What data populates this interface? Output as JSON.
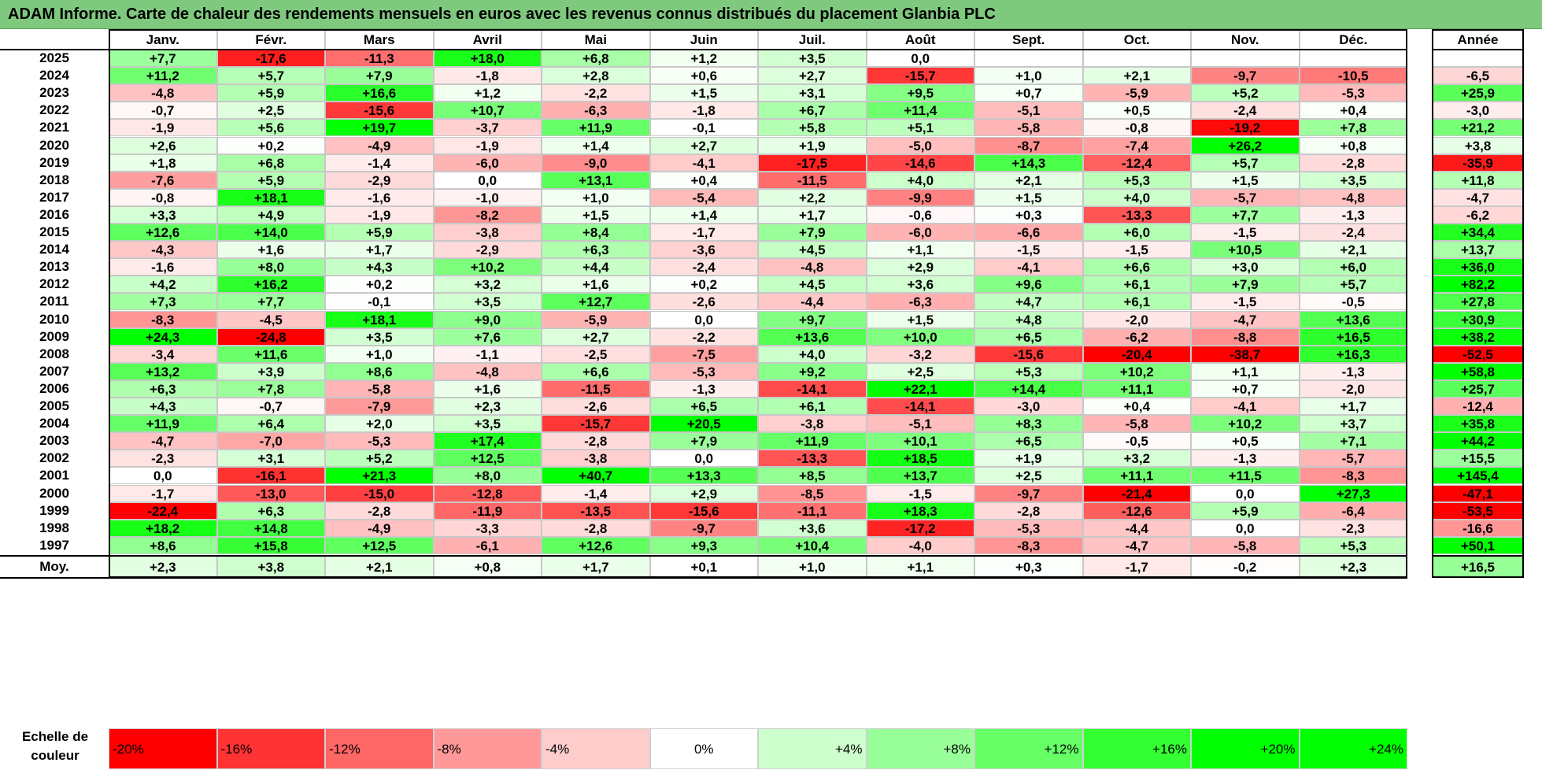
{
  "title": "ADAM Informe. Carte de chaleur des rendements mensuels en euros avec les revenus connus distribués du placement Glanbia PLC",
  "chart_data": {
    "type": "heatmap",
    "title": "ADAM Informe. Carte de chaleur des rendements mensuels en euros avec les revenus connus distribués du placement Glanbia PLC",
    "months": [
      "Janv.",
      "Févr.",
      "Mars",
      "Avril",
      "Mai",
      "Juin",
      "Juil.",
      "Août",
      "Sept.",
      "Oct.",
      "Nov.",
      "Déc."
    ],
    "annual_header": "Année",
    "rows": [
      {
        "year": "2025",
        "values": [
          "+7,7",
          "-17,6",
          "-11,3",
          "+18,0",
          "+6,8",
          "+1,2",
          "+3,5",
          "0,0",
          "",
          "",
          "",
          ""
        ],
        "annual": ""
      },
      {
        "year": "2024",
        "values": [
          "+11,2",
          "+5,7",
          "+7,9",
          "-1,8",
          "+2,8",
          "+0,6",
          "+2,7",
          "-15,7",
          "+1,0",
          "+2,1",
          "-9,7",
          "-10,5"
        ],
        "annual": "-6,5"
      },
      {
        "year": "2023",
        "values": [
          "-4,8",
          "+5,9",
          "+16,6",
          "+1,2",
          "-2,2",
          "+1,5",
          "+3,1",
          "+9,5",
          "+0,7",
          "-5,9",
          "+5,2",
          "-5,3"
        ],
        "annual": "+25,9"
      },
      {
        "year": "2022",
        "values": [
          "-0,7",
          "+2,5",
          "-15,6",
          "+10,7",
          "-6,3",
          "-1,8",
          "+6,7",
          "+11,4",
          "-5,1",
          "+0,5",
          "-2,4",
          "+0,4"
        ],
        "annual": "-3,0"
      },
      {
        "year": "2021",
        "values": [
          "-1,9",
          "+5,6",
          "+19,7",
          "-3,7",
          "+11,9",
          "-0,1",
          "+5,8",
          "+5,1",
          "-5,8",
          "-0,8",
          "-19,2",
          "+7,8"
        ],
        "annual": "+21,2"
      },
      {
        "year": "2020",
        "values": [
          "+2,6",
          "+0,2",
          "-4,9",
          "-1,9",
          "+1,4",
          "+2,7",
          "+1,9",
          "-5,0",
          "-8,7",
          "-7,4",
          "+26,2",
          "+0,8"
        ],
        "annual": "+3,8"
      },
      {
        "year": "2019",
        "values": [
          "+1,8",
          "+6,8",
          "-1,4",
          "-6,0",
          "-9,0",
          "-4,1",
          "-17,5",
          "-14,6",
          "+14,3",
          "-12,4",
          "+5,7",
          "-2,8"
        ],
        "annual": "-35,9"
      },
      {
        "year": "2018",
        "values": [
          "-7,6",
          "+5,9",
          "-2,9",
          "0,0",
          "+13,1",
          "+0,4",
          "-11,5",
          "+4,0",
          "+2,1",
          "+5,3",
          "+1,5",
          "+3,5"
        ],
        "annual": "+11,8"
      },
      {
        "year": "2017",
        "values": [
          "-0,8",
          "+18,1",
          "-1,6",
          "-1,0",
          "+1,0",
          "-5,4",
          "+2,2",
          "-9,9",
          "+1,5",
          "+4,0",
          "-5,7",
          "-4,8"
        ],
        "annual": "-4,7"
      },
      {
        "year": "2016",
        "values": [
          "+3,3",
          "+4,9",
          "-1,9",
          "-8,2",
          "+1,5",
          "+1,4",
          "+1,7",
          "-0,6",
          "+0,3",
          "-13,3",
          "+7,7",
          "-1,3"
        ],
        "annual": "-6,2"
      },
      {
        "year": "2015",
        "values": [
          "+12,6",
          "+14,0",
          "+5,9",
          "-3,8",
          "+8,4",
          "-1,7",
          "+7,9",
          "-6,0",
          "-6,6",
          "+6,0",
          "-1,5",
          "-2,4"
        ],
        "annual": "+34,4"
      },
      {
        "year": "2014",
        "values": [
          "-4,3",
          "+1,6",
          "+1,7",
          "-2,9",
          "+6,3",
          "-3,6",
          "+4,5",
          "+1,1",
          "-1,5",
          "-1,5",
          "+10,5",
          "+2,1"
        ],
        "annual": "+13,7"
      },
      {
        "year": "2013",
        "values": [
          "-1,6",
          "+8,0",
          "+4,3",
          "+10,2",
          "+4,4",
          "-2,4",
          "-4,8",
          "+2,9",
          "-4,1",
          "+6,6",
          "+3,0",
          "+6,0"
        ],
        "annual": "+36,0"
      },
      {
        "year": "2012",
        "values": [
          "+4,2",
          "+16,2",
          "+0,2",
          "+3,2",
          "+1,6",
          "+0,2",
          "+4,5",
          "+3,6",
          "+9,6",
          "+6,1",
          "+7,9",
          "+5,7"
        ],
        "annual": "+82,2"
      },
      {
        "year": "2011",
        "values": [
          "+7,3",
          "+7,7",
          "-0,1",
          "+3,5",
          "+12,7",
          "-2,6",
          "-4,4",
          "-6,3",
          "+4,7",
          "+6,1",
          "-1,5",
          "-0,5"
        ],
        "annual": "+27,8"
      },
      {
        "year": "2010",
        "values": [
          "-8,3",
          "-4,5",
          "+18,1",
          "+9,0",
          "-5,9",
          "0,0",
          "+9,7",
          "+1,5",
          "+4,8",
          "-2,0",
          "-4,7",
          "+13,6"
        ],
        "annual": "+30,9"
      },
      {
        "year": "2009",
        "values": [
          "+24,3",
          "-24,8",
          "+3,5",
          "+7,6",
          "+2,7",
          "-2,2",
          "+13,6",
          "+10,0",
          "+6,5",
          "-6,2",
          "-8,8",
          "+16,5"
        ],
        "annual": "+38,2"
      },
      {
        "year": "2008",
        "values": [
          "-3,4",
          "+11,6",
          "+1,0",
          "-1,1",
          "-2,5",
          "-7,5",
          "+4,0",
          "-3,2",
          "-15,6",
          "-20,4",
          "-38,7",
          "+16,3"
        ],
        "annual": "-52,5"
      },
      {
        "year": "2007",
        "values": [
          "+13,2",
          "+3,9",
          "+8,6",
          "-4,8",
          "+6,6",
          "-5,3",
          "+9,2",
          "+2,5",
          "+5,3",
          "+10,2",
          "+1,1",
          "-1,3"
        ],
        "annual": "+58,8"
      },
      {
        "year": "2006",
        "values": [
          "+6,3",
          "+7,8",
          "-5,8",
          "+1,6",
          "-11,5",
          "-1,3",
          "-14,1",
          "+22,1",
          "+14,4",
          "+11,1",
          "+0,7",
          "-2,0"
        ],
        "annual": "+25,7"
      },
      {
        "year": "2005",
        "values": [
          "+4,3",
          "-0,7",
          "-7,9",
          "+2,3",
          "-2,6",
          "+6,5",
          "+6,1",
          "-14,1",
          "-3,0",
          "+0,4",
          "-4,1",
          "+1,7"
        ],
        "annual": "-12,4"
      },
      {
        "year": "2004",
        "values": [
          "+11,9",
          "+6,4",
          "+2,0",
          "+3,5",
          "-15,7",
          "+20,5",
          "-3,8",
          "-5,1",
          "+8,3",
          "-5,8",
          "+10,2",
          "+3,7"
        ],
        "annual": "+35,8"
      },
      {
        "year": "2003",
        "values": [
          "-4,7",
          "-7,0",
          "-5,3",
          "+17,4",
          "-2,8",
          "+7,9",
          "+11,9",
          "+10,1",
          "+6,5",
          "-0,5",
          "+0,5",
          "+7,1"
        ],
        "annual": "+44,2"
      },
      {
        "year": "2002",
        "values": [
          "-2,3",
          "+3,1",
          "+5,2",
          "+12,5",
          "-3,8",
          "0,0",
          "-13,3",
          "+18,5",
          "+1,9",
          "+3,2",
          "-1,3",
          "-5,7"
        ],
        "annual": "+15,5"
      },
      {
        "year": "2001",
        "values": [
          "0,0",
          "-16,1",
          "+21,3",
          "+8,0",
          "+40,7",
          "+13,3",
          "+8,5",
          "+13,7",
          "+2,5",
          "+11,1",
          "+11,5",
          "-8,3"
        ],
        "annual": "+145,4"
      },
      {
        "year": "2000",
        "values": [
          "-1,7",
          "-13,0",
          "-15,0",
          "-12,8",
          "-1,4",
          "+2,9",
          "-8,5",
          "-1,5",
          "-9,7",
          "-21,4",
          "0,0",
          "+27,3"
        ],
        "annual": "-47,1"
      },
      {
        "year": "1999",
        "values": [
          "-22,4",
          "+6,3",
          "-2,8",
          "-11,9",
          "-13,5",
          "-15,6",
          "-11,1",
          "+18,3",
          "-2,8",
          "-12,6",
          "+5,9",
          "-6,4"
        ],
        "annual": "-53,5"
      },
      {
        "year": "1998",
        "values": [
          "+18,2",
          "+14,8",
          "-4,9",
          "-3,3",
          "-2,8",
          "-9,7",
          "+3,6",
          "-17,2",
          "-5,3",
          "-4,4",
          "0,0",
          "-2,3"
        ],
        "annual": "-16,6"
      },
      {
        "year": "1997",
        "values": [
          "+8,6",
          "+15,8",
          "+12,5",
          "-6,1",
          "+12,6",
          "+9,3",
          "+10,4",
          "-4,0",
          "-8,3",
          "-4,7",
          "-5,8",
          "+5,3"
        ],
        "annual": "+50,1"
      }
    ],
    "average": {
      "label": "Moy.",
      "values": [
        "+2,3",
        "+3,8",
        "+2,1",
        "+0,8",
        "+1,7",
        "+0,1",
        "+1,0",
        "+1,1",
        "+0,3",
        "-1,7",
        "-0,2",
        "+2,3"
      ],
      "annual": "+16,5"
    },
    "scale": {
      "label_line1": "Echelle de",
      "label_line2": "couleur",
      "steps": [
        "-20%",
        "-16%",
        "-12%",
        "-8%",
        "-4%",
        "0%",
        "+4%",
        "+8%",
        "+12%",
        "+16%",
        "+20%",
        "+24%"
      ],
      "step_values": [
        -20,
        -16,
        -12,
        -8,
        -4,
        0,
        4,
        8,
        12,
        16,
        20,
        24
      ]
    },
    "colors": {
      "negative": "#ff0000",
      "neutral": "#ffffff",
      "positive": "#00ff00"
    }
  }
}
